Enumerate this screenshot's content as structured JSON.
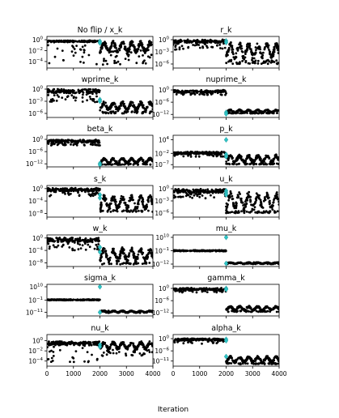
{
  "figure": {
    "xlabel": "Iteration",
    "colors": {
      "points": "#000000",
      "marker": "#2ec4c6",
      "axis": "#000000"
    }
  },
  "chart_data": [
    {
      "type": "scatter",
      "title": "No flip / x_k",
      "xlim": [
        0,
        4000
      ],
      "ylog": true,
      "yticks": [
        {
          "exp": 0,
          "label": "10^0"
        },
        {
          "exp": -2,
          "label": "10^-2"
        },
        {
          "exp": -4,
          "label": "10^-4"
        }
      ],
      "yrange_exp": [
        -5.2,
        0.6
      ],
      "phase1": {
        "x": [
          0,
          2000
        ],
        "level_exp": [
          -0.5,
          -0.1
        ],
        "spikes_exp": [
          -4.6,
          -1.0
        ]
      },
      "phase2": {
        "x": [
          2000,
          4000
        ],
        "level_exp": [
          -2.5,
          -0.2
        ],
        "spikes_exp": [
          -4.6,
          -1.5
        ]
      },
      "marker": {
        "x": 2000,
        "y_exp": [
          -0.3,
          -0.6
        ]
      }
    },
    {
      "type": "scatter",
      "title": "r_k",
      "xlim": [
        0,
        4000
      ],
      "ylog": true,
      "yticks": [
        {
          "exp": 0,
          "label": "10^0"
        },
        {
          "exp": -3,
          "label": "10^-3"
        },
        {
          "exp": -6,
          "label": "10^-6"
        }
      ],
      "yrange_exp": [
        -7.0,
        0.8
      ],
      "phase1": {
        "x": [
          0,
          2000
        ],
        "level_exp": [
          -1.0,
          0.1
        ],
        "spikes_exp": [
          -2.5,
          -1.0
        ]
      },
      "phase2": {
        "x": [
          2000,
          4000
        ],
        "level_exp": [
          -5.0,
          -0.5
        ],
        "spikes_exp": [
          -6.0,
          -5.0
        ]
      },
      "marker": {
        "x": 2000,
        "y_exp": [
          -0.3,
          -0.7
        ]
      }
    },
    {
      "type": "scatter",
      "title": "wprime_k",
      "xlim": [
        0,
        4000
      ],
      "ylog": true,
      "yticks": [
        {
          "exp": 0,
          "label": "10^0"
        },
        {
          "exp": -3,
          "label": "10^-3"
        },
        {
          "exp": -6,
          "label": "10^-6"
        }
      ],
      "yrange_exp": [
        -7.0,
        0.8
      ],
      "phase1": {
        "x": [
          0,
          2000
        ],
        "level_exp": [
          -1.2,
          0.1
        ],
        "spikes_exp": [
          -3.2,
          -1.2
        ]
      },
      "phase2": {
        "x": [
          2000,
          4000
        ],
        "level_exp": [
          -5.5,
          -3.0
        ],
        "spikes_exp": [
          -6.0,
          -5.5
        ]
      },
      "marker": {
        "x": 2000,
        "y_exp": [
          -2.6,
          -3.0
        ]
      }
    },
    {
      "type": "scatter",
      "title": "nuprime_k",
      "xlim": [
        0,
        4000
      ],
      "ylog": true,
      "yticks": [
        {
          "exp": 0,
          "label": "10^0"
        },
        {
          "exp": -6,
          "label": "10^-6"
        },
        {
          "exp": -12,
          "label": "10^-12"
        }
      ],
      "yrange_exp": [
        -13.5,
        2.0
      ],
      "phase1": {
        "x": [
          0,
          2000
        ],
        "level_exp": [
          -1.5,
          0.0
        ],
        "spikes_exp": [
          -2.5,
          -1.5
        ]
      },
      "phase2": {
        "x": [
          2000,
          4000
        ],
        "level_exp": [
          -11.2,
          -9.6
        ],
        "spikes_exp": [
          -11.5,
          -11.2
        ]
      },
      "marker": {
        "x": 2000,
        "y_exp": [
          -11.0,
          -11.8
        ]
      }
    },
    {
      "type": "scatter",
      "title": "beta_k",
      "xlim": [
        0,
        4000
      ],
      "ylog": true,
      "yticks": [
        {
          "exp": 0,
          "label": "10^0"
        },
        {
          "exp": -6,
          "label": "10^-6"
        },
        {
          "exp": -12,
          "label": "10^-12"
        }
      ],
      "yrange_exp": [
        -13.5,
        2.0
      ],
      "phase1": {
        "x": [
          0,
          2000
        ],
        "level_exp": [
          -2.0,
          0.0
        ],
        "spikes_exp": [
          -3.0,
          -2.0
        ]
      },
      "phase2": {
        "x": [
          2000,
          4000
        ],
        "level_exp": [
          -12.0,
          -9.0
        ],
        "spikes_exp": [
          -12.5,
          -12.0
        ]
      },
      "marker": {
        "x": 2000,
        "y_exp": [
          -11.8,
          -12.5
        ]
      }
    },
    {
      "type": "scatter",
      "title": "p_k",
      "xlim": [
        0,
        4000
      ],
      "ylog": true,
      "yticks": [
        {
          "exp": 4,
          "label": "10^4"
        },
        {
          "exp": -2,
          "label": "10^-2"
        },
        {
          "exp": -7,
          "label": "10^-7"
        }
      ],
      "yrange_exp": [
        -8.0,
        6.0
      ],
      "phase1": {
        "x": [
          0,
          2000
        ],
        "level_exp": [
          -2.5,
          -1.2
        ],
        "spikes_exp": [
          -3.5,
          -2.5
        ]
      },
      "phase2": {
        "x": [
          2000,
          4000
        ],
        "level_exp": [
          -6.5,
          -2.5
        ],
        "spikes_exp": [
          -7.0,
          -6.5
        ]
      },
      "marker": {
        "x": 2000,
        "y_exp": [
          4.0,
          -2.5,
          -3.5
        ]
      }
    },
    {
      "type": "scatter",
      "title": "s_k",
      "xlim": [
        0,
        4000
      ],
      "ylog": true,
      "yticks": [
        {
          "exp": 0,
          "label": "10^0"
        },
        {
          "exp": -4,
          "label": "10^-4"
        },
        {
          "exp": -8,
          "label": "10^-8"
        }
      ],
      "yrange_exp": [
        -9.2,
        1.0
      ],
      "phase1": {
        "x": [
          0,
          2000
        ],
        "level_exp": [
          -1.0,
          0.3
        ],
        "spikes_exp": [
          -2.5,
          -1.0
        ]
      },
      "phase2": {
        "x": [
          2000,
          4000
        ],
        "level_exp": [
          -7.0,
          -2.0
        ],
        "spikes_exp": [
          -7.5,
          -7.0
        ]
      },
      "marker": {
        "x": 2000,
        "y_exp": [
          -2.0,
          -3.0
        ]
      }
    },
    {
      "type": "scatter",
      "title": "u_k",
      "xlim": [
        0,
        4000
      ],
      "ylog": true,
      "yticks": [
        {
          "exp": 0,
          "label": "10^0"
        },
        {
          "exp": -3,
          "label": "10^-3"
        },
        {
          "exp": -6,
          "label": "10^-6"
        }
      ],
      "yrange_exp": [
        -7.0,
        0.8
      ],
      "phase1": {
        "x": [
          0,
          2000
        ],
        "level_exp": [
          -1.2,
          0.0
        ],
        "spikes_exp": [
          -2.5,
          -1.2
        ]
      },
      "phase2": {
        "x": [
          2000,
          4000
        ],
        "level_exp": [
          -5.5,
          -0.5
        ],
        "spikes_exp": [
          -6.0,
          -5.5
        ]
      },
      "marker": {
        "x": 2000,
        "y_exp": [
          -0.5,
          -1.0,
          -1.5
        ]
      }
    },
    {
      "type": "scatter",
      "title": "w_k",
      "xlim": [
        0,
        4000
      ],
      "ylog": true,
      "yticks": [
        {
          "exp": 0,
          "label": "10^0"
        },
        {
          "exp": -4,
          "label": "10^-4"
        },
        {
          "exp": -8,
          "label": "10^-8"
        }
      ],
      "yrange_exp": [
        -9.2,
        1.0
      ],
      "phase1": {
        "x": [
          0,
          2000
        ],
        "level_exp": [
          -1.5,
          0.2
        ],
        "spikes_exp": [
          -4.0,
          -1.5
        ]
      },
      "phase2": {
        "x": [
          2000,
          4000
        ],
        "level_exp": [
          -8.0,
          -3.0
        ],
        "spikes_exp": [
          -8.5,
          -8.0
        ]
      },
      "marker": {
        "x": 2000,
        "y_exp": [
          -3.0,
          -4.5
        ]
      }
    },
    {
      "type": "scatter",
      "title": "mu_k",
      "xlim": [
        0,
        4000
      ],
      "ylog": true,
      "yticks": [
        {
          "exp": 10,
          "label": "10^10"
        },
        {
          "exp": -1,
          "label": "10^-1"
        },
        {
          "exp": -12,
          "label": "10^-12"
        }
      ],
      "yrange_exp": [
        -14.0,
        12.0
      ],
      "phase1": {
        "x": [
          0,
          2000
        ],
        "level_exp": [
          -1.5,
          -0.5
        ],
        "spikes_exp": [
          -1.5,
          -0.5
        ]
      },
      "phase2": {
        "x": [
          2000,
          4000
        ],
        "level_exp": [
          -12.0,
          -10.5
        ],
        "spikes_exp": [
          -12.0,
          -10.5
        ]
      },
      "marker": {
        "x": 2000,
        "y_exp": [
          10.0,
          -11.5
        ]
      }
    },
    {
      "type": "scatter",
      "title": "sigma_k",
      "xlim": [
        0,
        4000
      ],
      "ylog": true,
      "yticks": [
        {
          "exp": 10,
          "label": "10^10"
        },
        {
          "exp": -1,
          "label": "10^-1"
        },
        {
          "exp": -11,
          "label": "10^-11"
        }
      ],
      "yrange_exp": [
        -14.0,
        12.0
      ],
      "phase1": {
        "x": [
          0,
          2000
        ],
        "level_exp": [
          -1.2,
          -0.3
        ],
        "spikes_exp": [
          -1.2,
          -0.3
        ]
      },
      "phase2": {
        "x": [
          2000,
          4000
        ],
        "level_exp": [
          -11.5,
          -9.5
        ],
        "spikes_exp": [
          -11.5,
          -9.5
        ]
      },
      "marker": {
        "x": 2000,
        "y_exp": [
          10.0,
          -11.0
        ]
      }
    },
    {
      "type": "scatter",
      "title": "gamma_k",
      "xlim": [
        0,
        4000
      ],
      "ylog": true,
      "yticks": [
        {
          "exp": 0,
          "label": "10^0"
        },
        {
          "exp": -6,
          "label": "10^-6"
        },
        {
          "exp": -12,
          "label": "10^-12"
        }
      ],
      "yrange_exp": [
        -13.5,
        2.0
      ],
      "phase1": {
        "x": [
          0,
          2000
        ],
        "level_exp": [
          -1.0,
          0.3
        ],
        "spikes_exp": [
          -2.0,
          -1.0
        ]
      },
      "phase2": {
        "x": [
          2000,
          4000
        ],
        "level_exp": [
          -11.0,
          -8.5
        ],
        "spikes_exp": [
          -11.5,
          -11.0
        ]
      },
      "marker": {
        "x": 2000,
        "y_exp": [
          0.0,
          -0.5
        ]
      }
    },
    {
      "type": "scatter",
      "title": "nu_k",
      "xlim": [
        0,
        4000
      ],
      "ylog": true,
      "yticks": [
        {
          "exp": 0,
          "label": "10^0"
        },
        {
          "exp": -2,
          "label": "10^-2"
        },
        {
          "exp": -4,
          "label": "10^-4"
        }
      ],
      "yrange_exp": [
        -5.0,
        1.2
      ],
      "phase1": {
        "x": [
          0,
          2000
        ],
        "level_exp": [
          -1.0,
          -0.1
        ],
        "spikes_exp": [
          -4.3,
          -1.0
        ]
      },
      "phase2": {
        "x": [
          2000,
          4000
        ],
        "level_exp": [
          -1.8,
          -0.1
        ],
        "spikes_exp": [
          -3.0,
          -1.8
        ]
      },
      "marker": {
        "x": 2000,
        "y_exp": [
          -0.8,
          -1.2
        ]
      }
    },
    {
      "type": "scatter",
      "title": "alpha_k",
      "xlim": [
        0,
        4000
      ],
      "ylog": true,
      "yticks": [
        {
          "exp": 0,
          "label": "10^0"
        },
        {
          "exp": -6,
          "label": "10^-6"
        },
        {
          "exp": -11,
          "label": "10^-11"
        }
      ],
      "yrange_exp": [
        -13.5,
        2.0
      ],
      "phase1": {
        "x": [
          0,
          2000
        ],
        "level_exp": [
          -1.0,
          0.2
        ],
        "spikes_exp": [
          -2.5,
          -1.0
        ]
      },
      "phase2": {
        "x": [
          2000,
          4000
        ],
        "level_exp": [
          -12.0,
          -8.5
        ],
        "spikes_exp": [
          -12.5,
          -12.0
        ]
      },
      "marker": {
        "x": 2000,
        "y_exp": [
          -0.3,
          -1.0,
          -8.8
        ]
      }
    }
  ],
  "xticks": [
    {
      "value": 0,
      "label": "0"
    },
    {
      "value": 1000,
      "label": "1000"
    },
    {
      "value": 2000,
      "label": "2000"
    },
    {
      "value": 3000,
      "label": "3000"
    },
    {
      "value": 4000,
      "label": "4000"
    }
  ]
}
